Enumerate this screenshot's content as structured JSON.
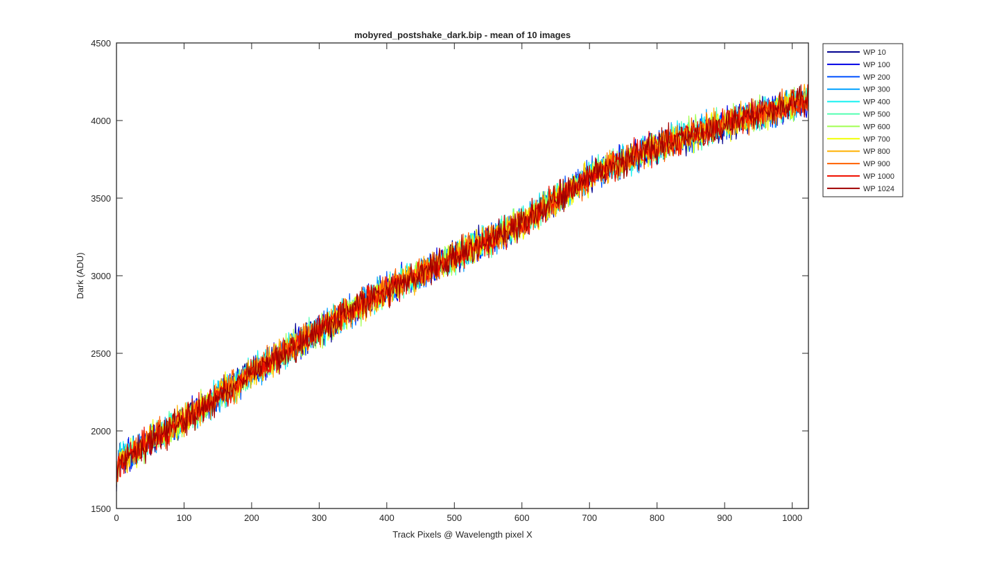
{
  "chart_data": {
    "type": "line",
    "title": "mobyred_postshake_dark.bip - mean of 10 images",
    "xlabel": "Track Pixels @ Wavelength pixel X",
    "ylabel": "Dark (ADU)",
    "xlim": [
      0,
      1024
    ],
    "ylim": [
      1500,
      4500
    ],
    "xticks": [
      0,
      100,
      200,
      300,
      400,
      500,
      600,
      700,
      800,
      900,
      1000
    ],
    "yticks": [
      1500,
      2000,
      2500,
      3000,
      3500,
      4000,
      4500
    ],
    "xtick_labels": [
      "0",
      "100",
      "200",
      "300",
      "400",
      "500",
      "600",
      "700",
      "800",
      "900",
      "1000"
    ],
    "ytick_labels": [
      "1500",
      "2000",
      "2500",
      "3000",
      "3500",
      "4000",
      "4500"
    ],
    "grid": false,
    "legend_position": "outside-top-right",
    "trend": {
      "x": [
        0,
        100,
        200,
        300,
        400,
        500,
        600,
        700,
        800,
        900,
        1024
      ],
      "y": [
        1800,
        2070,
        2370,
        2650,
        2910,
        3120,
        3340,
        3640,
        3830,
        3980,
        4130
      ]
    },
    "noise_amplitude_adu": 80,
    "series": [
      {
        "name": "WP 10",
        "color": "#00008f"
      },
      {
        "name": "WP 100",
        "color": "#0000e6"
      },
      {
        "name": "WP 200",
        "color": "#0050ff"
      },
      {
        "name": "WP 300",
        "color": "#00a0ff"
      },
      {
        "name": "WP 400",
        "color": "#10f0f0"
      },
      {
        "name": "WP 500",
        "color": "#50ffb0"
      },
      {
        "name": "WP 600",
        "color": "#a0ff50"
      },
      {
        "name": "WP 700",
        "color": "#f0ff00"
      },
      {
        "name": "WP 800",
        "color": "#ffb000"
      },
      {
        "name": "WP 900",
        "color": "#ff6000"
      },
      {
        "name": "WP 1000",
        "color": "#f01000"
      },
      {
        "name": "WP 1024",
        "color": "#a00000"
      }
    ]
  }
}
